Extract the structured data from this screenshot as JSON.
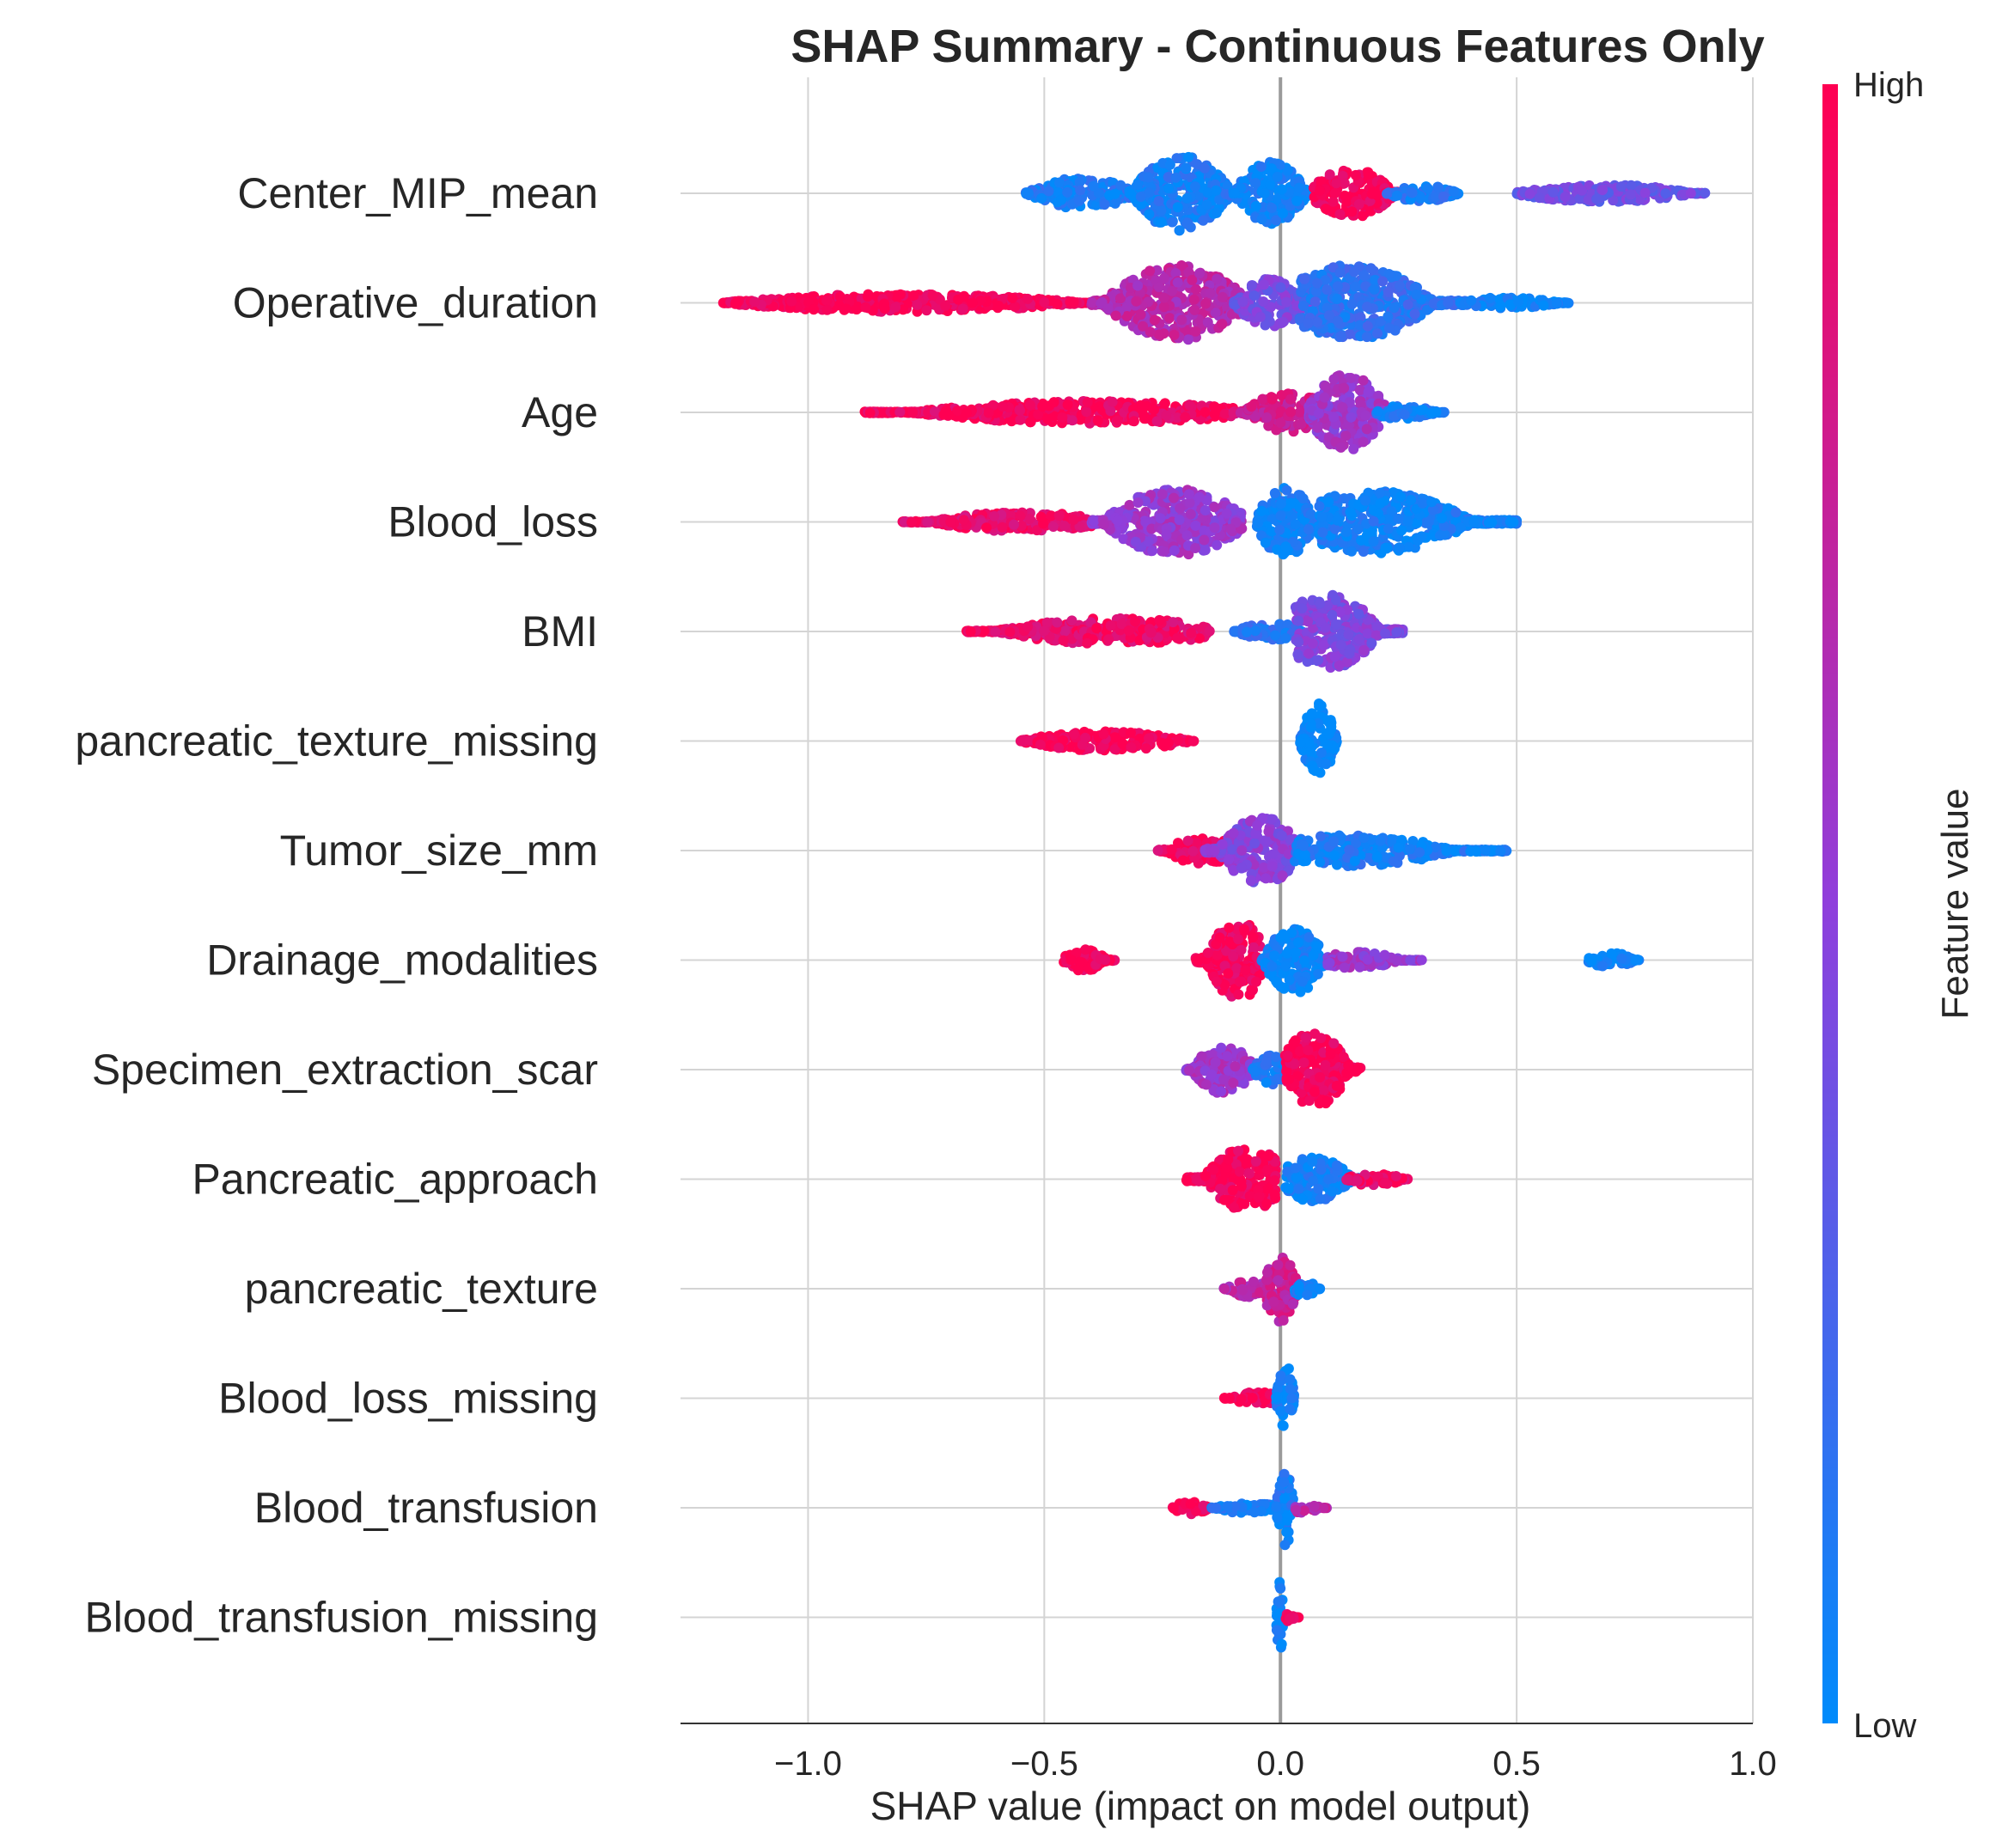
{
  "chart_data": {
    "type": "scatter",
    "subtype": "shap-beeswarm",
    "title": "SHAP Summary - Continuous Features Only",
    "xlabel": "SHAP value (impact on model output)",
    "ylabel": "",
    "xlim": [
      -1.27,
      1.0
    ],
    "xticks": [
      -1.0,
      -0.5,
      0.0,
      0.5,
      1.0
    ],
    "xtick_labels": [
      "−1.0",
      "−0.5",
      "0.0",
      "0.5",
      "1.0"
    ],
    "grid": true,
    "colorbar": {
      "title": "Feature value",
      "high_label": "High",
      "low_label": "Low",
      "high_color": "#ff0052",
      "mid_color": "#8f3fdc",
      "low_color": "#008bfb"
    },
    "features": [
      {
        "name": "Center_MIP_mean",
        "clusters": [
          {
            "min": -0.54,
            "max": -0.3,
            "center": -0.42,
            "spread": 0.35,
            "value": 0.1
          },
          {
            "min": -0.32,
            "max": -0.1,
            "center": -0.21,
            "spread": 0.85,
            "value": 0.08
          },
          {
            "min": -0.1,
            "max": 0.06,
            "center": -0.02,
            "spread": 0.7,
            "value": 0.05
          },
          {
            "min": 0.07,
            "max": 0.26,
            "center": 0.15,
            "spread": 0.55,
            "value": 0.97
          },
          {
            "min": 0.22,
            "max": 0.38,
            "center": 0.3,
            "spread": 0.18,
            "value": 0.1
          },
          {
            "min": 0.5,
            "max": 0.9,
            "center": 0.68,
            "spread": 0.2,
            "value": 0.38
          }
        ]
      },
      {
        "name": "Operative_duration",
        "clusters": [
          {
            "min": -1.18,
            "max": -0.4,
            "center": -0.8,
            "spread": 0.2,
            "value": 0.98
          },
          {
            "min": -0.4,
            "max": -0.08,
            "center": -0.22,
            "spread": 0.85,
            "value": 0.68
          },
          {
            "min": -0.1,
            "max": 0.06,
            "center": -0.02,
            "spread": 0.55,
            "value": 0.42
          },
          {
            "min": 0.04,
            "max": 0.4,
            "center": 0.15,
            "spread": 0.85,
            "value": 0.15
          },
          {
            "min": 0.38,
            "max": 0.61,
            "center": 0.48,
            "spread": 0.12,
            "value": 0.03
          }
        ]
      },
      {
        "name": "Age",
        "clusters": [
          {
            "min": -0.88,
            "max": -0.1,
            "center": -0.4,
            "spread": 0.25,
            "value": 0.96
          },
          {
            "min": -0.1,
            "max": 0.1,
            "center": 0.02,
            "spread": 0.45,
            "value": 0.78
          },
          {
            "min": 0.06,
            "max": 0.24,
            "center": 0.14,
            "spread": 0.85,
            "value": 0.55
          },
          {
            "min": 0.2,
            "max": 0.35,
            "center": 0.26,
            "spread": 0.15,
            "value": 0.08
          }
        ]
      },
      {
        "name": "Blood_loss",
        "clusters": [
          {
            "min": -0.8,
            "max": -0.4,
            "center": -0.55,
            "spread": 0.22,
            "value": 0.92
          },
          {
            "min": -0.4,
            "max": -0.08,
            "center": -0.22,
            "spread": 0.75,
            "value": 0.55
          },
          {
            "min": -0.05,
            "max": 0.08,
            "center": 0.01,
            "spread": 0.8,
            "value": 0.05
          },
          {
            "min": 0.08,
            "max": 0.5,
            "center": 0.2,
            "spread": 0.7,
            "value": 0.06
          }
        ]
      },
      {
        "name": "BMI",
        "clusters": [
          {
            "min": -0.67,
            "max": -0.15,
            "center": -0.35,
            "spread": 0.3,
            "value": 0.92
          },
          {
            "min": -0.1,
            "max": 0.05,
            "center": -0.02,
            "spread": 0.2,
            "value": 0.15
          },
          {
            "min": 0.03,
            "max": 0.26,
            "center": 0.1,
            "spread": 0.85,
            "value": 0.45
          }
        ]
      },
      {
        "name": "pancreatic_texture_missing",
        "clusters": [
          {
            "min": -0.55,
            "max": -0.18,
            "center": -0.37,
            "spread": 0.22,
            "value": 0.99
          },
          {
            "min": 0.04,
            "max": 0.12,
            "center": 0.08,
            "spread": 0.85,
            "value": 0.02
          }
        ]
      },
      {
        "name": "Tumor_size_mm",
        "clusters": [
          {
            "min": -0.26,
            "max": -0.08,
            "center": -0.16,
            "spread": 0.3,
            "value": 0.95
          },
          {
            "min": -0.16,
            "max": 0.03,
            "center": -0.04,
            "spread": 0.75,
            "value": 0.48
          },
          {
            "min": 0.03,
            "max": 0.48,
            "center": 0.15,
            "spread": 0.35,
            "value": 0.08
          }
        ]
      },
      {
        "name": "Drainage_modalities",
        "clusters": [
          {
            "min": -0.46,
            "max": -0.35,
            "center": -0.42,
            "spread": 0.25,
            "value": 0.99
          },
          {
            "min": -0.18,
            "max": -0.04,
            "center": -0.09,
            "spread": 0.9,
            "value": 0.97
          },
          {
            "min": -0.04,
            "max": 0.1,
            "center": 0.03,
            "spread": 0.75,
            "value": 0.04
          },
          {
            "min": 0.1,
            "max": 0.3,
            "center": 0.16,
            "spread": 0.18,
            "value": 0.55
          },
          {
            "min": 0.65,
            "max": 0.76,
            "center": 0.7,
            "spread": 0.18,
            "value": 0.03
          }
        ]
      },
      {
        "name": "Specimen_extraction_scar",
        "clusters": [
          {
            "min": -0.2,
            "max": -0.06,
            "center": -0.12,
            "spread": 0.55,
            "value": 0.58
          },
          {
            "min": -0.06,
            "max": 0.02,
            "center": -0.02,
            "spread": 0.35,
            "value": 0.1
          },
          {
            "min": 0.01,
            "max": 0.17,
            "center": 0.07,
            "spread": 0.85,
            "value": 0.98
          }
        ]
      },
      {
        "name": "Pancreatic_approach",
        "clusters": [
          {
            "min": -0.2,
            "max": -0.01,
            "center": -0.07,
            "spread": 0.75,
            "value": 0.98
          },
          {
            "min": 0.01,
            "max": 0.18,
            "center": 0.07,
            "spread": 0.5,
            "value": 0.06
          },
          {
            "min": 0.14,
            "max": 0.27,
            "center": 0.2,
            "spread": 0.15,
            "value": 0.92
          }
        ]
      },
      {
        "name": "pancreatic_texture",
        "clusters": [
          {
            "min": -0.12,
            "max": -0.03,
            "center": -0.07,
            "spread": 0.2,
            "value": 0.68
          },
          {
            "min": -0.03,
            "max": 0.05,
            "center": 0.0,
            "spread": 0.75,
            "value": 0.75
          },
          {
            "min": 0.03,
            "max": 0.09,
            "center": 0.05,
            "spread": 0.18,
            "value": 0.05
          }
        ]
      },
      {
        "name": "Blood_loss_missing",
        "clusters": [
          {
            "min": -0.12,
            "max": -0.01,
            "center": -0.05,
            "spread": 0.15,
            "value": 0.99
          },
          {
            "min": -0.01,
            "max": 0.03,
            "center": 0.01,
            "spread": 0.85,
            "value": 0.03
          }
        ]
      },
      {
        "name": "Blood_transfusion",
        "clusters": [
          {
            "min": -0.23,
            "max": -0.15,
            "center": -0.19,
            "spread": 0.15,
            "value": 0.98
          },
          {
            "min": -0.15,
            "max": 0.0,
            "center": -0.07,
            "spread": 0.12,
            "value": 0.1
          },
          {
            "min": -0.01,
            "max": 0.03,
            "center": 0.01,
            "spread": 0.85,
            "value": 0.08
          },
          {
            "min": 0.03,
            "max": 0.1,
            "center": 0.05,
            "spread": 0.12,
            "value": 0.68
          }
        ]
      },
      {
        "name": "Blood_transfusion_missing",
        "clusters": [
          {
            "min": -0.01,
            "max": 0.01,
            "center": 0.0,
            "spread": 0.85,
            "value": 0.03
          },
          {
            "min": 0.01,
            "max": 0.04,
            "center": 0.02,
            "spread": 0.1,
            "value": 0.97
          }
        ]
      }
    ]
  }
}
